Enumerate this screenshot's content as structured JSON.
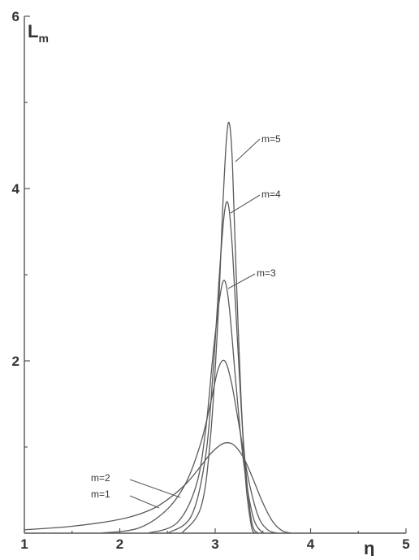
{
  "chart_data": {
    "type": "line",
    "title": "",
    "xlabel": "η",
    "ylabel": "L",
    "ylabel_subscript": "m",
    "xlim": [
      1,
      5
    ],
    "ylim": [
      0,
      6
    ],
    "x_ticks": [
      1,
      2,
      3,
      4,
      5
    ],
    "y_ticks": [
      2,
      4,
      6
    ],
    "grid": false,
    "series": [
      {
        "name": "m=1",
        "x": [
          1.0,
          1.5,
          2.0,
          2.3,
          2.5,
          2.7,
          2.85,
          2.95,
          3.05,
          3.12,
          3.2,
          3.3,
          3.4,
          3.5,
          3.6,
          3.7,
          3.8
        ],
        "y": [
          0.04,
          0.08,
          0.16,
          0.26,
          0.39,
          0.58,
          0.78,
          0.92,
          1.02,
          1.05,
          1.02,
          0.87,
          0.62,
          0.35,
          0.14,
          0.03,
          0.0
        ]
      },
      {
        "name": "m=2",
        "x": [
          1.8,
          2.2,
          2.5,
          2.7,
          2.85,
          2.95,
          3.03,
          3.1,
          3.17,
          3.25,
          3.35,
          3.45,
          3.55,
          3.65
        ],
        "y": [
          0.0,
          0.06,
          0.28,
          0.6,
          1.05,
          1.5,
          1.9,
          2.0,
          1.75,
          1.25,
          0.62,
          0.2,
          0.04,
          0.0
        ]
      },
      {
        "name": "m=3",
        "x": [
          2.3,
          2.6,
          2.8,
          2.9,
          2.98,
          3.05,
          3.1,
          3.15,
          3.22,
          3.3,
          3.4,
          3.5
        ],
        "y": [
          0.0,
          0.12,
          0.55,
          1.2,
          2.1,
          2.75,
          2.93,
          2.6,
          1.7,
          0.8,
          0.18,
          0.0
        ]
      },
      {
        "name": "m=4",
        "x": [
          2.5,
          2.75,
          2.9,
          2.98,
          3.05,
          3.1,
          3.14,
          3.18,
          3.24,
          3.3,
          3.38,
          3.45
        ],
        "y": [
          0.0,
          0.2,
          0.9,
          1.9,
          3.1,
          3.75,
          3.8,
          3.3,
          2.1,
          1.0,
          0.15,
          0.0
        ]
      },
      {
        "name": "m=5",
        "x": [
          2.65,
          2.85,
          2.95,
          3.03,
          3.08,
          3.12,
          3.15,
          3.18,
          3.22,
          3.27,
          3.32,
          3.38,
          3.42
        ],
        "y": [
          0.0,
          0.3,
          1.1,
          2.5,
          3.8,
          4.6,
          4.75,
          4.3,
          3.0,
          1.6,
          0.6,
          0.08,
          0.0
        ]
      }
    ],
    "labels": [
      "m=5",
      "m=4",
      "m=3",
      "m=2",
      "m=1"
    ],
    "label_text": {
      "m=5": "m=5",
      "m=4": "m=4",
      "m=3": "m=3",
      "m=2": "m=2",
      "m=1": "m=1"
    }
  }
}
